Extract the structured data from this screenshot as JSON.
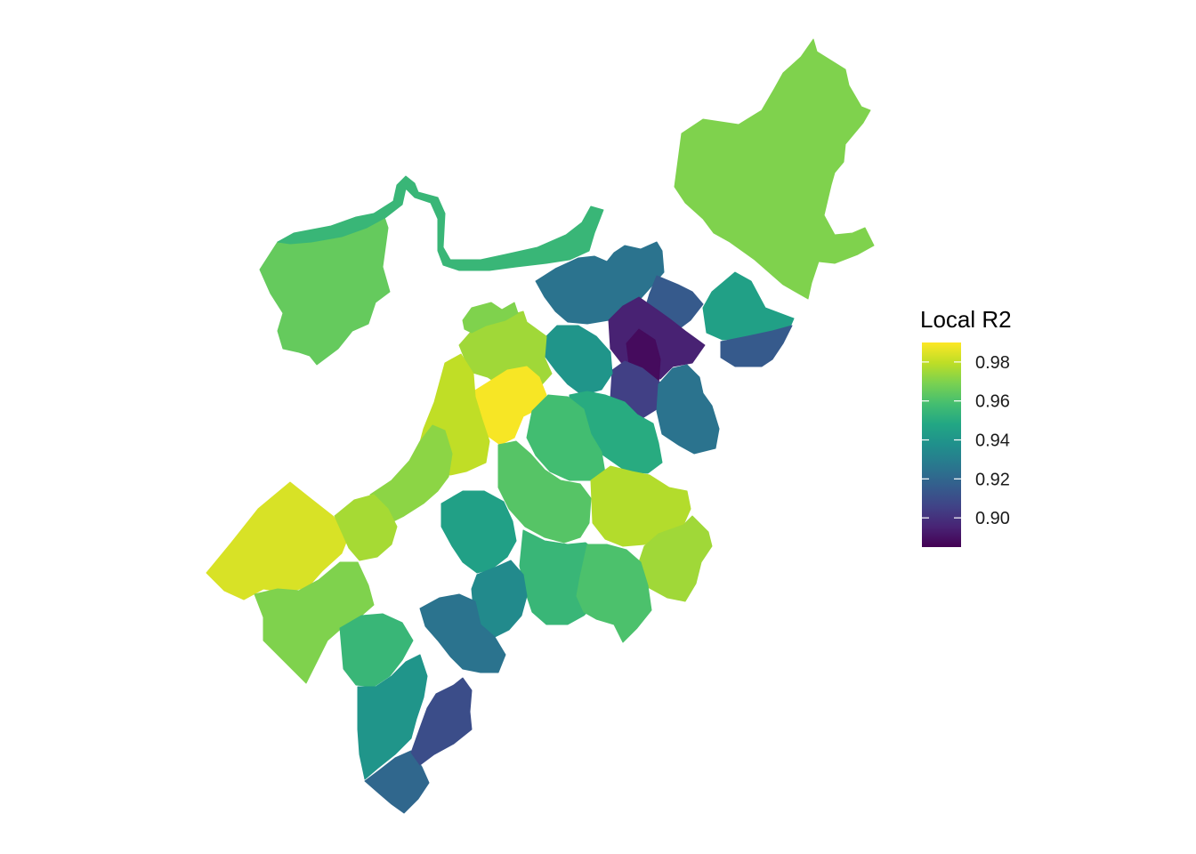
{
  "legend": {
    "title": "Local R2",
    "ticks": [
      {
        "value": 0.98,
        "label": "0.98"
      },
      {
        "value": 0.96,
        "label": "0.96"
      },
      {
        "value": 0.94,
        "label": "0.94"
      },
      {
        "value": 0.92,
        "label": "0.92"
      },
      {
        "value": 0.9,
        "label": "0.90"
      }
    ],
    "range": [
      0.885,
      0.99
    ],
    "colormap": "viridis"
  },
  "regions": [
    {
      "id": "brighton-allston",
      "value": 0.965
    },
    {
      "id": "charles-river-corridor",
      "value": 0.955
    },
    {
      "id": "charlestown-east-boston",
      "value": 0.97
    },
    {
      "id": "north-end-downtown-1",
      "value": 0.925
    },
    {
      "id": "north-end-downtown-2",
      "value": 0.915
    },
    {
      "id": "downtown-core-1",
      "value": 0.895
    },
    {
      "id": "downtown-core-2",
      "value": 0.888
    },
    {
      "id": "financial-district",
      "value": 0.905
    },
    {
      "id": "south-boston-north",
      "value": 0.945
    },
    {
      "id": "south-boston-east",
      "value": 0.915
    },
    {
      "id": "south-boston-waterfront",
      "value": 0.925
    },
    {
      "id": "back-bay-1",
      "value": 0.94
    },
    {
      "id": "back-bay-2",
      "value": 0.95
    },
    {
      "id": "fenway-kenmore-1",
      "value": 0.975
    },
    {
      "id": "fenway-kenmore-core",
      "value": 0.989
    },
    {
      "id": "fenway-kenmore-2",
      "value": 0.97
    },
    {
      "id": "south-end",
      "value": 0.958
    },
    {
      "id": "roxbury-1",
      "value": 0.962
    },
    {
      "id": "roxbury-2",
      "value": 0.955
    },
    {
      "id": "dorchester-north",
      "value": 0.978
    },
    {
      "id": "dorchester-east",
      "value": 0.975
    },
    {
      "id": "dorchester-south",
      "value": 0.96
    },
    {
      "id": "jamaica-plain-west",
      "value": 0.98
    },
    {
      "id": "jamaica-plain-east",
      "value": 0.972
    },
    {
      "id": "west-roxbury-1",
      "value": 0.984
    },
    {
      "id": "west-roxbury-2",
      "value": 0.976
    },
    {
      "id": "roslindale-1",
      "value": 0.97
    },
    {
      "id": "roslindale-2",
      "value": 0.955
    },
    {
      "id": "mission-hill",
      "value": 0.945
    },
    {
      "id": "mattapan-1",
      "value": 0.935
    },
    {
      "id": "mattapan-2",
      "value": 0.925
    },
    {
      "id": "hyde-park-north",
      "value": 0.94
    },
    {
      "id": "hyde-park-south",
      "value": 0.92
    },
    {
      "id": "neponset",
      "value": 0.91
    }
  ]
}
